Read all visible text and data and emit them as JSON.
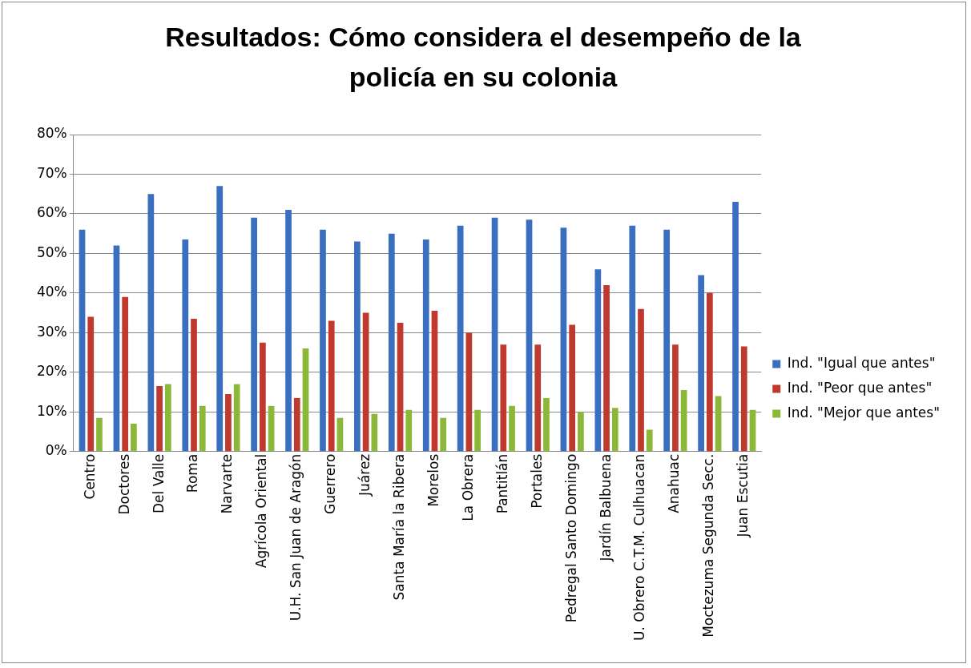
{
  "chart_data": {
    "type": "bar",
    "title": "Resultados: Cómo considera el desempeño de la policía en su colonia",
    "categories": [
      "Centro",
      "Doctores",
      "Del Valle",
      "Roma",
      "Narvarte",
      "Agrícola Oriental",
      "U.H. San Juan de Aragón",
      "Guerrero",
      "Juárez",
      "Santa María la Ribera",
      "Morelos",
      "La Obrera",
      "Pantitlán",
      "Portales",
      "Pedregal Santo Domingo",
      "Jardín Balbuena",
      "U. Obrero C.T.M. Culhuacan",
      "Anahuac",
      "Moctezuma Segunda Secc.",
      "Juan Escutia"
    ],
    "series": [
      {
        "name": "Ind. \"Igual que antes\"",
        "color": "#3a6fc0",
        "values": [
          56,
          52,
          65,
          53.5,
          67,
          59,
          61,
          56,
          53,
          55,
          53.5,
          57,
          59,
          58.5,
          56.5,
          46,
          57,
          56,
          44.5,
          63
        ]
      },
      {
        "name": "Ind. \"Peor que antes\"",
        "color": "#c0392f",
        "values": [
          34,
          39,
          16.5,
          33.5,
          14.5,
          27.5,
          13.5,
          33,
          35,
          32.5,
          35.5,
          30,
          27,
          27,
          32,
          42,
          36,
          27,
          40,
          26.5
        ]
      },
      {
        "name": "Ind. \"Mejor que antes\"",
        "color": "#8cb83a",
        "values": [
          8.5,
          7,
          17,
          11.5,
          17,
          11.5,
          26,
          8.5,
          9.5,
          10.5,
          8.5,
          10.5,
          11.5,
          13.5,
          10,
          11,
          5.5,
          15.5,
          14,
          10.5
        ]
      }
    ],
    "ylim": [
      0,
      80
    ],
    "yticks": [
      {
        "value": 0,
        "label": "0%"
      },
      {
        "value": 10,
        "label": "10%"
      },
      {
        "value": 20,
        "label": "20%"
      },
      {
        "value": 30,
        "label": "30%"
      },
      {
        "value": 40,
        "label": "40%"
      },
      {
        "value": 50,
        "label": "50%"
      },
      {
        "value": 60,
        "label": "60%"
      },
      {
        "value": 70,
        "label": "70%"
      },
      {
        "value": 80,
        "label": "80%"
      }
    ],
    "grid": "y",
    "legend": "right"
  }
}
